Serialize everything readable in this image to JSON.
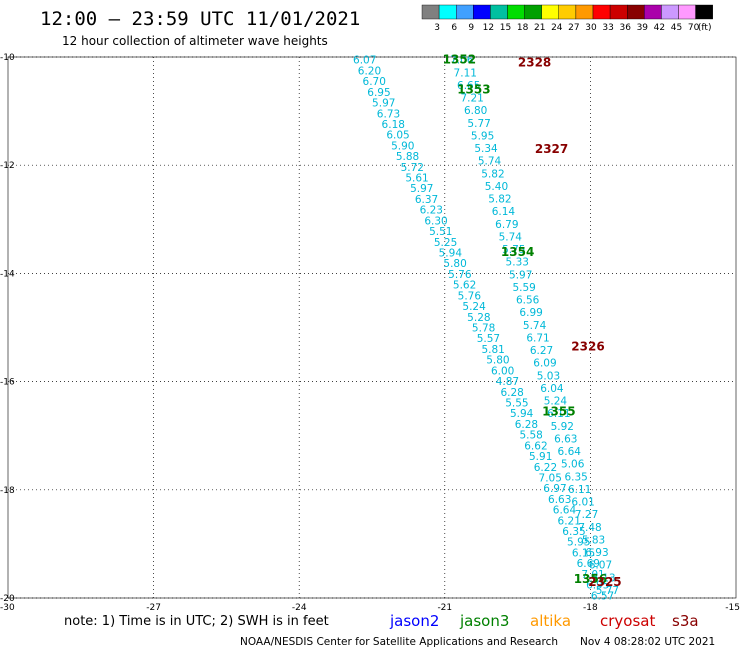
{
  "header": {
    "title": "12:00 – 23:59 UTC 11/01/2021",
    "subtitle": "12 hour collection of altimeter wave heights"
  },
  "colorbar": {
    "unit": "(ft)",
    "labels": [
      "3",
      "6",
      "9",
      "12",
      "15",
      "18",
      "21",
      "24",
      "27",
      "30",
      "33",
      "36",
      "39",
      "42",
      "45",
      "70"
    ],
    "colors": [
      "#808080",
      "#00ffff",
      "#40a0ff",
      "#0000ff",
      "#00c0a0",
      "#00dd00",
      "#00a000",
      "#ffff00",
      "#ffcc00",
      "#ff9900",
      "#ff0000",
      "#cc0000",
      "#880000",
      "#aa00aa",
      "#cc99ff",
      "#ff99ff",
      "#000000"
    ]
  },
  "footer": {
    "note": "note: 1) Time is in UTC; 2) SWH is in feet",
    "satellites": [
      {
        "label": "jason2",
        "color": "#0000ff"
      },
      {
        "label": "jason3",
        "color": "#008000"
      },
      {
        "label": "altika",
        "color": "#ff9900"
      },
      {
        "label": "cryosat",
        "color": "#cc0000"
      },
      {
        "label": "s3a",
        "color": "#880000"
      }
    ],
    "credit": "NOAA/NESDIS Center for Satellite Applications and Research",
    "timestamp": "Nov  4 08:28:02 UTC 2021"
  },
  "chart_data": {
    "type": "scatter",
    "xlim": [
      -30,
      -15
    ],
    "ylim": [
      -20,
      -10
    ],
    "x_ticks": [
      "-30",
      "-27",
      "-24",
      "-21",
      "-18",
      "-15"
    ],
    "y_ticks": [
      "-10",
      "-12",
      "-14",
      "-16",
      "-18",
      "-20"
    ],
    "grid": true,
    "tracks": [
      {
        "pass": "1352",
        "start": [
          -22.65,
          -10.05
        ],
        "end": [
          -17.75,
          -19.95
        ],
        "values": [
          "6.07",
          "6.20",
          "6.70",
          "6.95",
          "5.97",
          "6.73",
          "6.18",
          "6.05",
          "5.90",
          "5.88",
          "5.72",
          "5.61",
          "5.97",
          "6.37",
          "6.23",
          "6.30",
          "5.51",
          "5.25",
          "5.94",
          "5.80",
          "5.76",
          "5.62",
          "5.76",
          "5.24",
          "5.28",
          "5.78",
          "5.57",
          "5.81",
          "5.80",
          "6.00",
          "4.87",
          "6.28",
          "5.55",
          "5.94",
          "6.28",
          "5.58",
          "6.62",
          "5.91",
          "6.22",
          "7.05",
          "6.97",
          "6.63",
          "6.64",
          "6.21",
          "6.35",
          "5.95",
          "6.15",
          "6.69",
          "7.01",
          "6.95",
          "6.57"
        ]
      },
      {
        "pass": "2328",
        "start": [
          -20.65,
          -10.05
        ],
        "end": [
          -17.65,
          -19.85
        ],
        "values": [
          "7.06",
          "7.11",
          "6.65",
          "7.21",
          "6.80",
          "5.77",
          "5.95",
          "5.34",
          "5.74",
          "5.82",
          "5.40",
          "5.82",
          "6.14",
          "6.79",
          "5.74",
          "5.75",
          "5.33",
          "5.97",
          "5.59",
          "6.56",
          "6.99",
          "5.74",
          "6.71",
          "6.27",
          "6.09",
          "5.03",
          "6.04",
          "5.24",
          "6.11",
          "5.92",
          "6.63",
          "6.64",
          "5.06",
          "6.35",
          "6.11",
          "6.01",
          "7.27",
          "7.48",
          "5.83",
          "6.93",
          "6.07",
          "5.13",
          "5.77"
        ]
      }
    ],
    "pass_labels": [
      {
        "text": "1352",
        "sat": "jason3",
        "x": -20.7,
        "y": -10.05
      },
      {
        "text": "1353",
        "sat": "jason3",
        "x": -20.4,
        "y": -10.6
      },
      {
        "text": "1354",
        "sat": "jason3",
        "x": -19.5,
        "y": -13.6
      },
      {
        "text": "1355",
        "sat": "jason3",
        "x": -18.65,
        "y": -16.55
      },
      {
        "text": "1356",
        "sat": "jason3",
        "x": -18.0,
        "y": -19.65
      },
      {
        "text": "2328",
        "sat": "s3a",
        "x": -19.15,
        "y": -10.1
      },
      {
        "text": "2327",
        "sat": "s3a",
        "x": -18.8,
        "y": -11.7
      },
      {
        "text": "2326",
        "sat": "s3a",
        "x": -18.05,
        "y": -15.35
      },
      {
        "text": "2325",
        "sat": "s3a",
        "x": -17.7,
        "y": -19.7
      }
    ]
  }
}
